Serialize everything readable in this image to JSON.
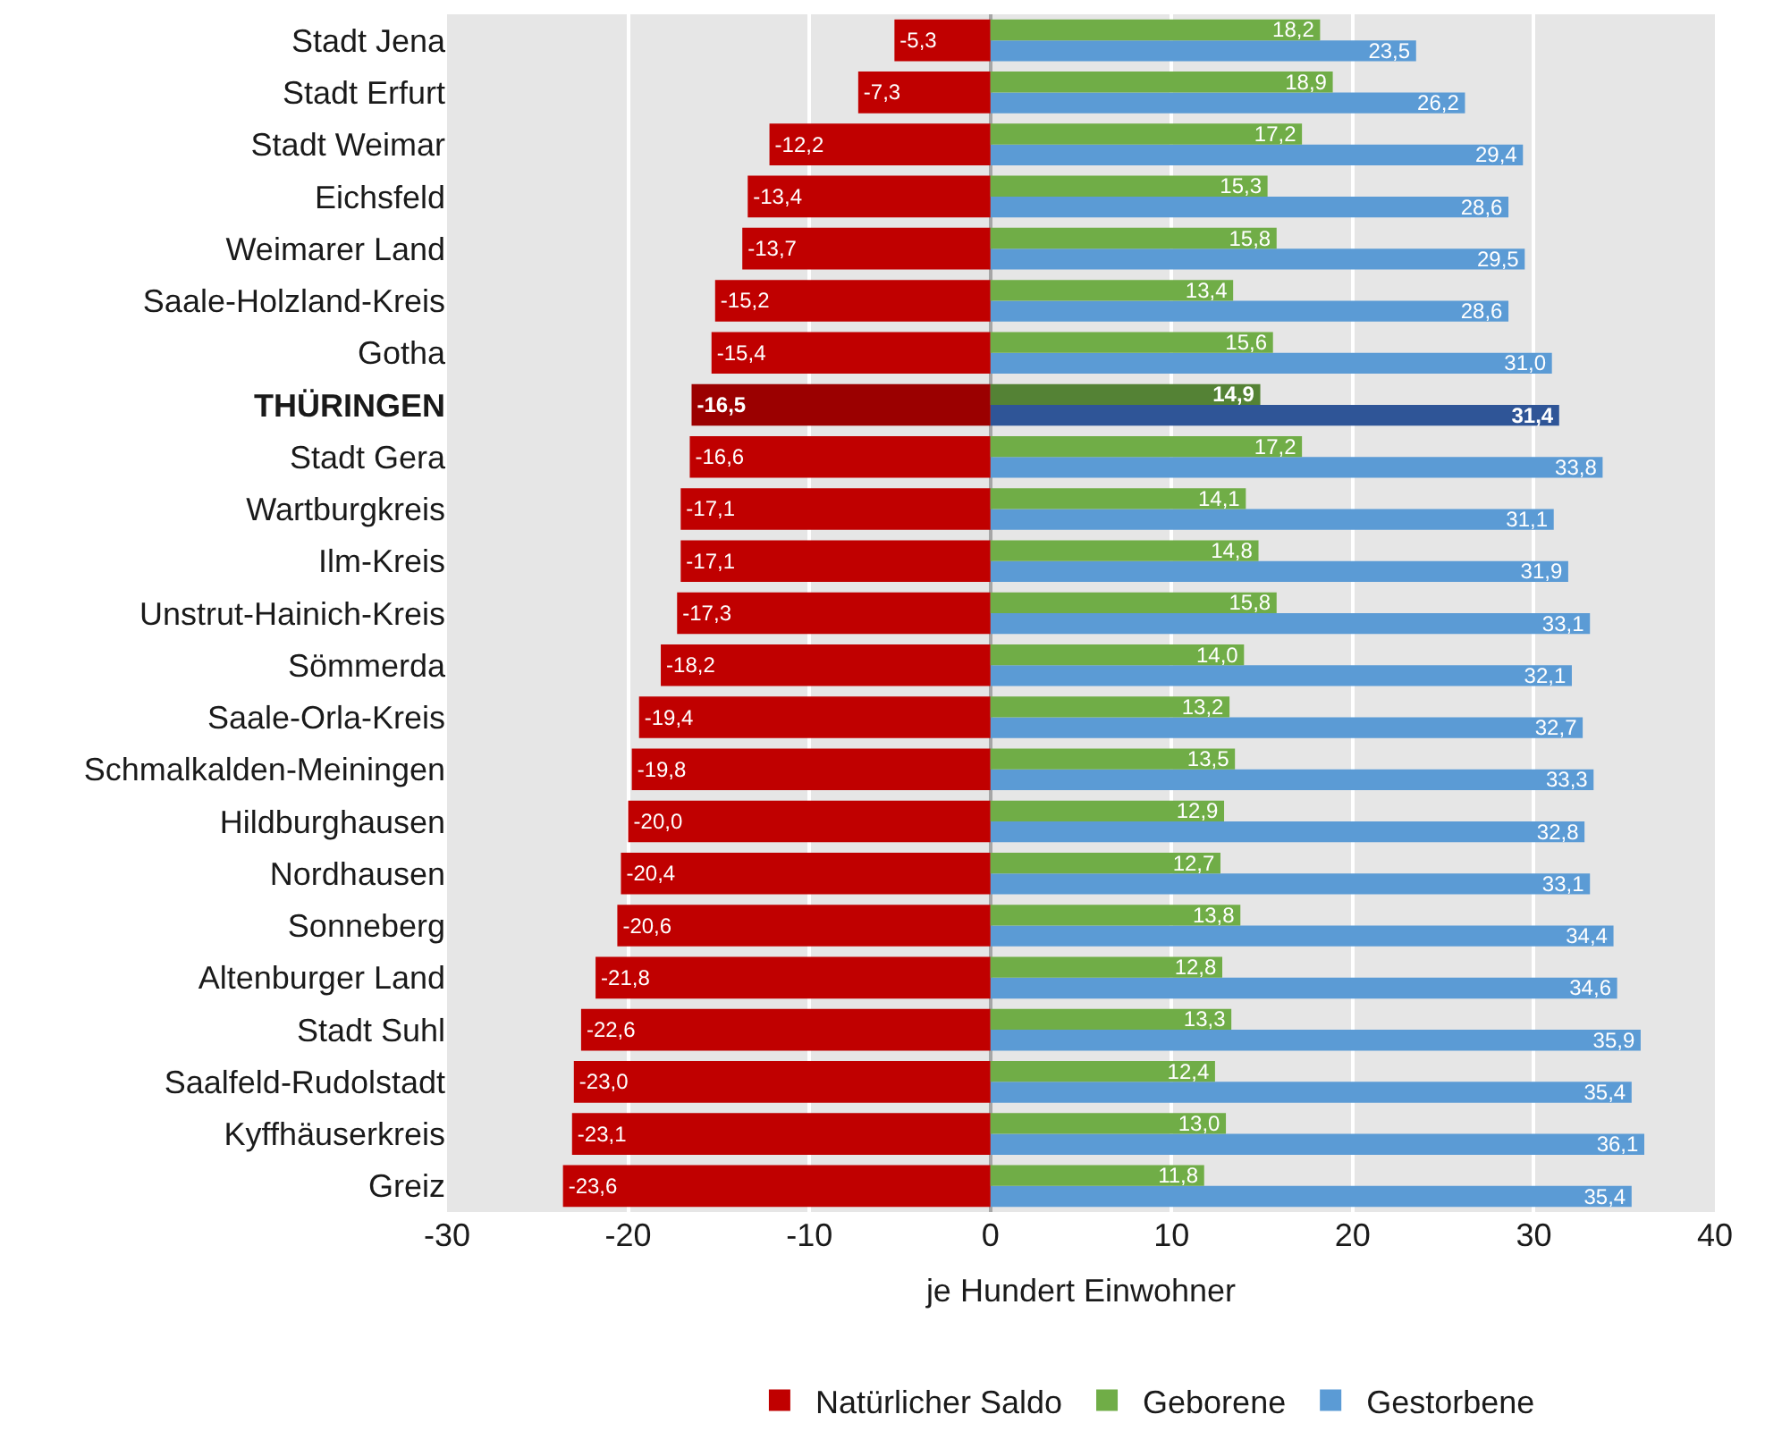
{
  "chart_data": {
    "type": "bar",
    "orientation": "horizontal",
    "xlabel": "je Hundert Einwohner",
    "xlim": [
      -30,
      40
    ],
    "xticks": [
      -30,
      -20,
      -10,
      0,
      10,
      20,
      30,
      40
    ],
    "grid": "x",
    "legend": "bottom",
    "categories": [
      "Stadt Jena",
      "Stadt Erfurt",
      "Stadt Weimar",
      "Eichsfeld",
      "Weimarer Land",
      "Saale-Holzland-Kreis",
      "Gotha",
      "THÜRINGEN",
      "Stadt Gera",
      "Wartburgkreis",
      "Ilm-Kreis",
      "Unstrut-Hainich-Kreis",
      "Sömmerda",
      "Saale-Orla-Kreis",
      "Schmalkalden-Meiningen",
      "Hildburghausen",
      "Nordhausen",
      "Sonneberg",
      "Altenburger Land",
      "Stadt Suhl",
      "Saalfeld-Rudolstadt",
      "Kyffhäuserkreis",
      "Greiz"
    ],
    "series": [
      {
        "name": "Natürlicher Saldo",
        "color": "#c00000",
        "colors": [
          "#c00000",
          "#c00000",
          "#c00000",
          "#c00000",
          "#c00000",
          "#c00000",
          "#c00000",
          "#9b0000",
          "#c00000",
          "#c00000",
          "#c00000",
          "#c00000",
          "#c00000",
          "#c00000",
          "#c00000",
          "#c00000",
          "#c00000",
          "#c00000",
          "#c00000",
          "#c00000",
          "#c00000",
          "#c00000",
          "#c00000"
        ],
        "values": [
          -5.3,
          -7.3,
          -12.2,
          -13.4,
          -13.7,
          -15.2,
          -15.4,
          -16.5,
          -16.6,
          -17.1,
          -17.1,
          -17.3,
          -18.2,
          -19.4,
          -19.8,
          -20.0,
          -20.4,
          -20.6,
          -21.8,
          -22.6,
          -23.0,
          -23.1,
          -23.6
        ],
        "value_labels": [
          "-5,3",
          "-7,3",
          "-12,2",
          "-13,4",
          "-13,7",
          "-15,2",
          "-15,4",
          "-16,5",
          "-16,6",
          "-17,1",
          "-17,1",
          "-17,3",
          "-18,2",
          "-19,4",
          "-19,8",
          "-20,0",
          "-20,4",
          "-20,6",
          "-21,8",
          "-22,6",
          "-23,0",
          "-23,1",
          "-23,6"
        ]
      },
      {
        "name": "Geborene",
        "color": "#70ad47",
        "colors": [
          "#70ad47",
          "#70ad47",
          "#70ad47",
          "#70ad47",
          "#70ad47",
          "#70ad47",
          "#70ad47",
          "#548235",
          "#70ad47",
          "#70ad47",
          "#70ad47",
          "#70ad47",
          "#70ad47",
          "#70ad47",
          "#70ad47",
          "#70ad47",
          "#70ad47",
          "#70ad47",
          "#70ad47",
          "#70ad47",
          "#70ad47",
          "#70ad47",
          "#70ad47"
        ],
        "values": [
          18.2,
          18.9,
          17.2,
          15.3,
          15.8,
          13.4,
          15.6,
          14.9,
          17.2,
          14.1,
          14.8,
          15.8,
          14.0,
          13.2,
          13.5,
          12.9,
          12.7,
          13.8,
          12.8,
          13.3,
          12.4,
          13.0,
          11.8
        ],
        "value_labels": [
          "18,2",
          "18,9",
          "17,2",
          "15,3",
          "15,8",
          "13,4",
          "15,6",
          "14,9",
          "17,2",
          "14,1",
          "14,8",
          "15,8",
          "14,0",
          "13,2",
          "13,5",
          "12,9",
          "12,7",
          "13,8",
          "12,8",
          "13,3",
          "12,4",
          "13,0",
          "11,8"
        ]
      },
      {
        "name": "Gestorbene",
        "color": "#5b9bd5",
        "colors": [
          "#5b9bd5",
          "#5b9bd5",
          "#5b9bd5",
          "#5b9bd5",
          "#5b9bd5",
          "#5b9bd5",
          "#5b9bd5",
          "#2f5597",
          "#5b9bd5",
          "#5b9bd5",
          "#5b9bd5",
          "#5b9bd5",
          "#5b9bd5",
          "#5b9bd5",
          "#5b9bd5",
          "#5b9bd5",
          "#5b9bd5",
          "#5b9bd5",
          "#5b9bd5",
          "#5b9bd5",
          "#5b9bd5",
          "#5b9bd5",
          "#5b9bd5"
        ],
        "values": [
          23.5,
          26.2,
          29.4,
          28.6,
          29.5,
          28.6,
          31.0,
          31.4,
          33.8,
          31.1,
          31.9,
          33.1,
          32.1,
          32.7,
          33.3,
          32.8,
          33.1,
          34.4,
          34.6,
          35.9,
          35.4,
          36.1,
          35.4
        ],
        "value_labels": [
          "23,5",
          "26,2",
          "29,4",
          "28,6",
          "29,5",
          "28,6",
          "31,0",
          "31,4",
          "33,8",
          "31,1",
          "31,9",
          "33,1",
          "32,1",
          "32,7",
          "33,3",
          "32,8",
          "33,1",
          "34,4",
          "34,6",
          "35,9",
          "35,4",
          "36,1",
          "35,4"
        ]
      }
    ]
  }
}
